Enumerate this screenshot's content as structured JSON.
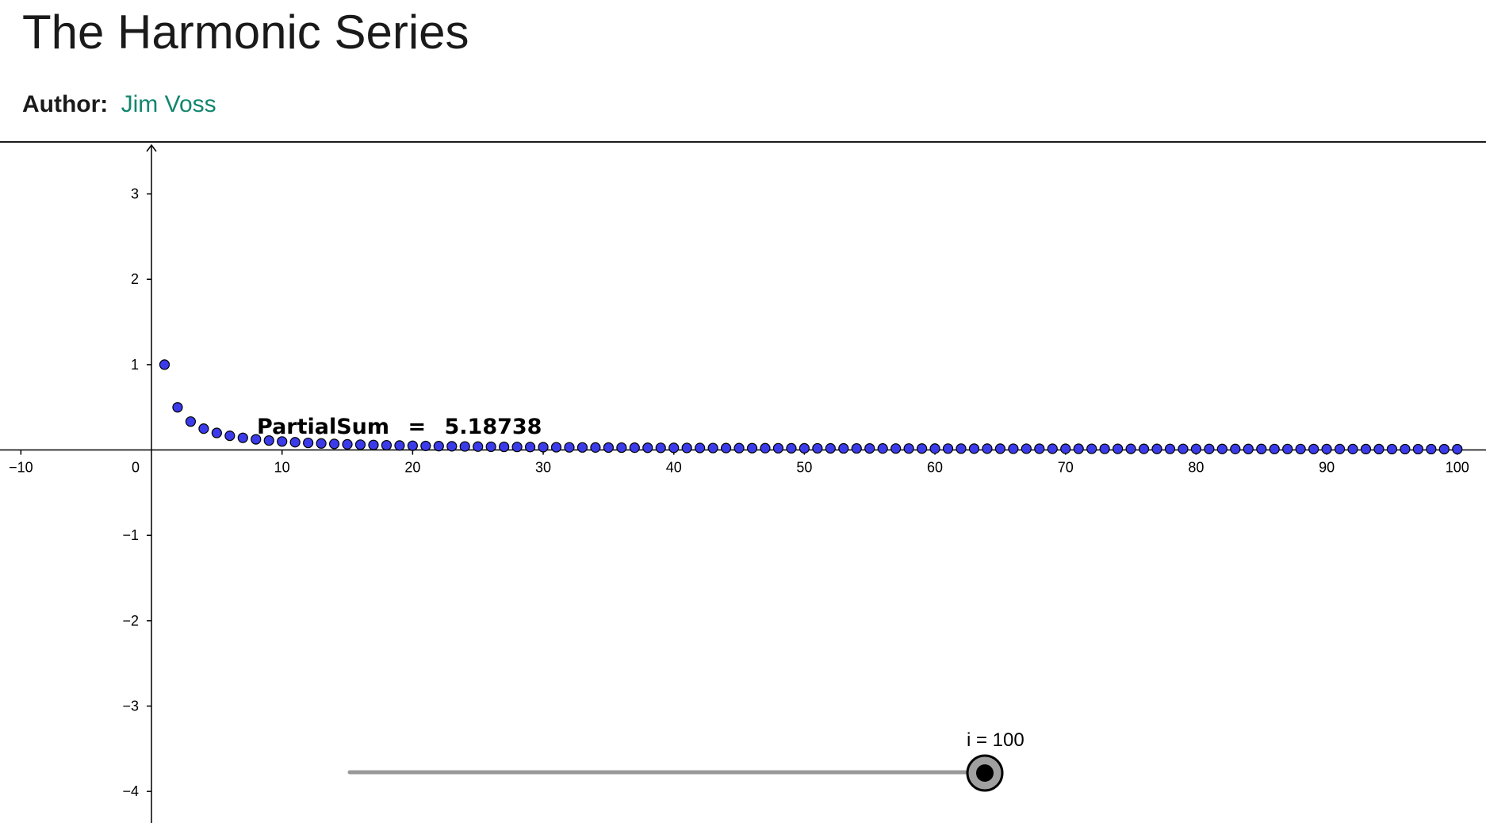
{
  "page": {
    "title": "The Harmonic Series",
    "author_label": "Author:",
    "author_name": "Jim Voss"
  },
  "colors": {
    "title_text": "#1a1a1a",
    "author_link": "#11866f",
    "point_fill": "#3b3bea",
    "point_stroke": "#000000",
    "axis": "#000000",
    "slider_track": "#999999",
    "slider_knob_outer": "#a0a0a0",
    "slider_knob_inner": "#000000"
  },
  "graph": {
    "partial_sum_label": "PartialSum",
    "partial_sum_equals": "=",
    "partial_sum_value": "5.18738",
    "slider_label": "i = 100",
    "slider": {
      "name": "i",
      "min": 1,
      "max": 100,
      "value": 100
    }
  },
  "chart_data": {
    "type": "scatter",
    "title": "",
    "xlabel": "",
    "ylabel": "",
    "xlim": [
      -11.6,
      102.2
    ],
    "ylim": [
      -4.37,
      3.6
    ],
    "x_ticks": [
      -10,
      0,
      10,
      20,
      30,
      40,
      50,
      60,
      70,
      80,
      90,
      100
    ],
    "x_tick_labels": [
      "−10",
      "0",
      "10",
      "20",
      "30",
      "40",
      "50",
      "60",
      "70",
      "80",
      "90",
      "100"
    ],
    "y_ticks": [
      3,
      2,
      1,
      -1,
      -2,
      -3,
      -4
    ],
    "y_tick_labels": [
      "3",
      "2",
      "1",
      "−1",
      "−2",
      "−3",
      "−4"
    ],
    "grid": false,
    "series": [
      {
        "formula": "1/n",
        "n_start": 1,
        "n_end": 100
      }
    ]
  }
}
